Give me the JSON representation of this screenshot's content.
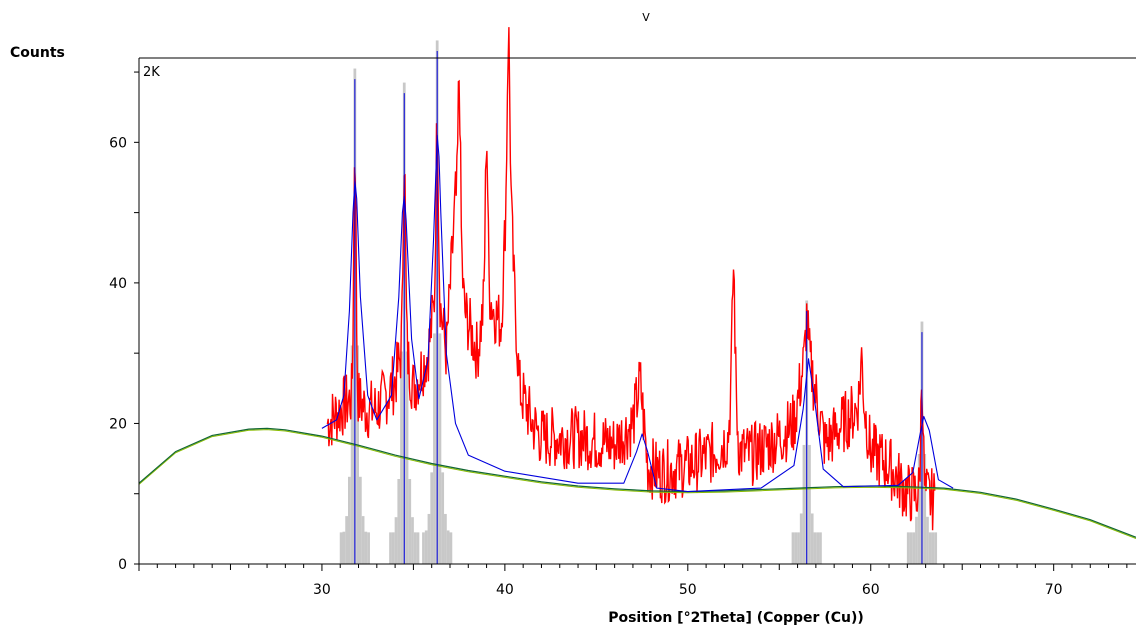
{
  "chart_data": {
    "type": "line",
    "title": "V",
    "ylabel": "Counts",
    "xlabel": "Position [°2Theta] (Copper (Cu))",
    "corner_label": "2K",
    "xlim": [
      20.0,
      74.5
    ],
    "ylim": [
      0,
      72
    ],
    "x_ticks": [
      30,
      40,
      50,
      60,
      70
    ],
    "y_ticks": [
      0,
      20,
      40,
      60
    ],
    "grid": false,
    "colors": {
      "measured": "#ff0000",
      "calculated": "#0000dd",
      "background": "#116633",
      "background_alt": "#88bb00",
      "reference_bars": "#c8c8c8",
      "peak_lines": "#0000dd"
    },
    "series": [
      {
        "role": "background",
        "x": [
          20,
          22,
          24,
          26,
          27,
          28,
          30,
          32,
          34,
          36,
          38,
          40,
          42,
          44,
          46,
          48,
          50,
          52,
          54,
          56,
          58,
          60,
          62,
          64,
          66,
          68,
          70,
          72,
          74.5
        ],
        "values": [
          11.5,
          16.0,
          18.3,
          19.2,
          19.3,
          19.1,
          18.2,
          16.9,
          15.5,
          14.3,
          13.3,
          12.5,
          11.7,
          11.1,
          10.7,
          10.4,
          10.3,
          10.4,
          10.6,
          10.8,
          11.0,
          11.1,
          11.0,
          10.8,
          10.2,
          9.2,
          7.8,
          6.3,
          3.8
        ]
      },
      {
        "role": "calculated",
        "x": [
          30.0,
          30.8,
          31.2,
          31.5,
          31.7,
          31.8,
          31.9,
          32.1,
          32.5,
          33.0,
          33.8,
          34.2,
          34.4,
          34.5,
          34.6,
          34.9,
          35.3,
          35.8,
          36.1,
          36.3,
          36.4,
          36.5,
          36.8,
          37.3,
          38.0,
          40.0,
          44.0,
          46.5,
          47.2,
          47.5,
          47.8,
          48.3,
          50.0,
          54.0,
          55.8,
          56.3,
          56.6,
          56.9,
          57.4,
          58.5,
          61.5,
          62.3,
          62.7,
          62.9,
          63.2,
          63.7,
          64.5
        ],
        "values": [
          19.3,
          20.5,
          24.0,
          36.0,
          50.0,
          54.5,
          52.0,
          38.0,
          24.0,
          20.5,
          24.0,
          38.0,
          50.0,
          52.3,
          49.0,
          32.0,
          23.5,
          29.0,
          46.0,
          61.0,
          58.0,
          50.0,
          30.0,
          20.0,
          15.5,
          13.2,
          11.5,
          11.5,
          16.0,
          18.5,
          16.0,
          10.8,
          10.3,
          10.8,
          14.0,
          22.0,
          29.2,
          24.0,
          13.5,
          11.0,
          11.2,
          13.0,
          18.5,
          21.0,
          19.0,
          12.0,
          10.8
        ]
      }
    ],
    "reference_peaks": [
      {
        "x": 31.8,
        "height": 69
      },
      {
        "x": 34.5,
        "height": 67
      },
      {
        "x": 36.3,
        "height": 73
      },
      {
        "x": 56.5,
        "height": 36
      },
      {
        "x": 62.8,
        "height": 33
      }
    ],
    "measured": {
      "x_range": [
        30.3,
        63.5
      ],
      "anchors_x": [
        30.3,
        31.0,
        31.8,
        32.4,
        33.0,
        34.0,
        34.5,
        35.0,
        35.8,
        36.3,
        36.8,
        37.3,
        37.5,
        37.8,
        38.5,
        39.0,
        39.4,
        39.8,
        40.2,
        40.5,
        40.8,
        41.5,
        42.0,
        44.0,
        46.0,
        47.0,
        47.4,
        47.8,
        48.5,
        50.0,
        51.5,
        52.2,
        52.5,
        52.8,
        53.5,
        55.0,
        55.8,
        56.3,
        56.6,
        57.0,
        57.5,
        58.5,
        59.2,
        59.5,
        60.0,
        61.0,
        62.0,
        62.8,
        63.5
      ],
      "anchors_y": [
        20.0,
        22.0,
        24.0,
        22.0,
        22.0,
        26.0,
        32.0,
        25.0,
        30.0,
        40.0,
        30.0,
        52.0,
        48.0,
        36.0,
        30.0,
        40.0,
        36.0,
        34.0,
        60.0,
        40.0,
        25.0,
        20.0,
        18.0,
        18.0,
        17.0,
        20.0,
        26.0,
        14.0,
        13.0,
        14.0,
        16.0,
        18.0,
        30.0,
        16.0,
        15.5,
        18.0,
        20.0,
        28.0,
        30.0,
        24.0,
        17.0,
        20.0,
        22.0,
        25.0,
        16.0,
        14.0,
        10.0,
        10.0,
        9.0
      ],
      "spikes": [
        {
          "x": 31.8,
          "y": 66
        },
        {
          "x": 34.5,
          "y": 63
        },
        {
          "x": 36.3,
          "y": 68
        },
        {
          "x": 37.5,
          "y": 73
        },
        {
          "x": 39.0,
          "y": 65
        },
        {
          "x": 40.2,
          "y": 78
        },
        {
          "x": 52.5,
          "y": 44
        },
        {
          "x": 56.5,
          "y": 36
        },
        {
          "x": 59.5,
          "y": 30
        },
        {
          "x": 62.8,
          "y": 30
        }
      ],
      "noise": 4.5
    }
  }
}
